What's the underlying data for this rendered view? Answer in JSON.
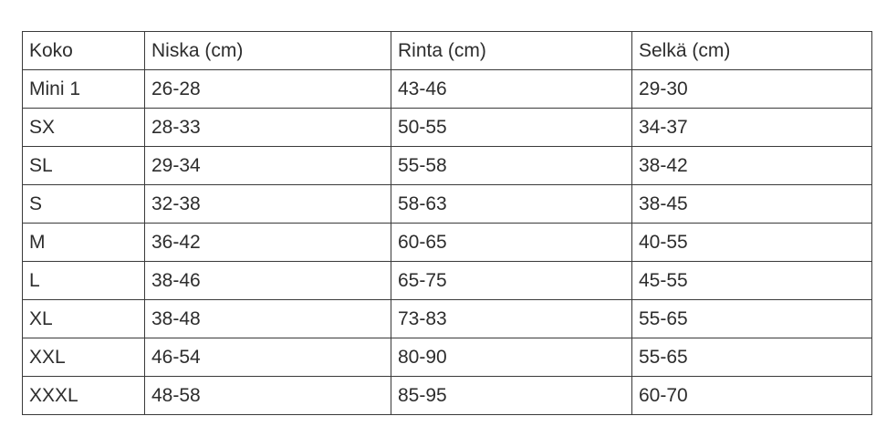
{
  "colors": {
    "background": "#ffffff",
    "border": "#3a3a3a",
    "text": "#2d2d2d"
  },
  "table": {
    "headers": [
      "Koko",
      "Niska (cm)",
      "Rinta (cm)",
      "Selkä (cm)"
    ],
    "rows": [
      [
        "Mini 1",
        "26-28",
        "43-46",
        "29-30"
      ],
      [
        "SX",
        "28-33",
        "50-55",
        "34-37"
      ],
      [
        "SL",
        "29-34",
        "55-58",
        "38-42"
      ],
      [
        "S",
        "32-38",
        "58-63",
        "38-45"
      ],
      [
        "M",
        "36-42",
        "60-65",
        "40-55"
      ],
      [
        "L",
        "38-46",
        "65-75",
        "45-55"
      ],
      [
        "XL",
        "38-48",
        "73-83",
        "55-65"
      ],
      [
        "XXL",
        "46-54",
        "80-90",
        "55-65"
      ],
      [
        "XXXL",
        "48-58",
        "85-95",
        "60-70"
      ]
    ]
  }
}
